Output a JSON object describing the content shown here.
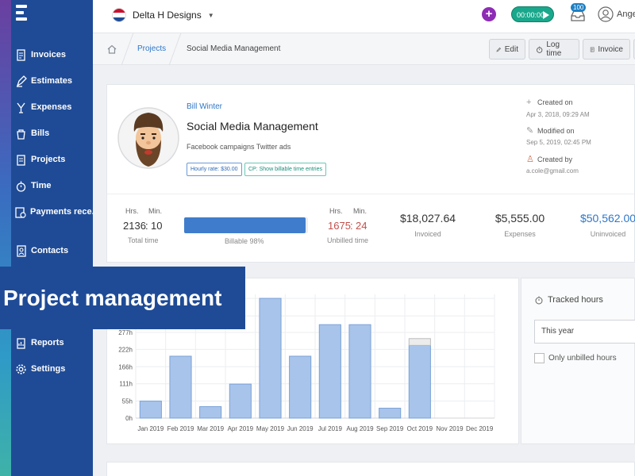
{
  "sidebar": {
    "items": [
      {
        "label": "Invoices",
        "icon": "invoice-icon"
      },
      {
        "label": "Estimates",
        "icon": "estimates-icon"
      },
      {
        "label": "Expenses",
        "icon": "expenses-icon"
      },
      {
        "label": "Bills",
        "icon": "bills-icon"
      },
      {
        "label": "Projects",
        "icon": "projects-icon"
      },
      {
        "label": "Time",
        "icon": "stopwatch-icon"
      },
      {
        "label": "Payments rece...",
        "icon": "payments-icon"
      },
      {
        "label": "Contacts",
        "icon": "contacts-icon"
      },
      {
        "label": "Reports",
        "icon": "reports-icon"
      },
      {
        "label": "Settings",
        "icon": "gear-icon"
      }
    ]
  },
  "topbar": {
    "company": "Delta H Designs",
    "timer": "00:00:00",
    "notifications": "100",
    "user": "Angeli"
  },
  "breadcrumb": {
    "parent": "Projects",
    "current": "Social Media Management"
  },
  "actions": {
    "edit": "Edit",
    "log_time": "Log time",
    "invoice": "Invoice"
  },
  "project": {
    "client": "Bill Winter",
    "title": "Social Media Management",
    "description": "Facebook campaigns Twitter ads",
    "hourly_rate": "Hourly rate: $30.00",
    "billable_tag": "CP: Show billable time entries",
    "created_label": "Created on",
    "created_value": "Apr 3, 2018, 09:29 AM",
    "modified_label": "Modified on",
    "modified_value": "Sep 5, 2019, 02:45 PM",
    "createdby_label": "Created by",
    "createdby_value": "a.cole@gmail.com"
  },
  "stats": {
    "hrs_label": "Hrs.",
    "min_label": "Min.",
    "total_hrs": "2136",
    "total_min": "10",
    "total_label": "Total time",
    "billable_label": "Billable 98%",
    "billable_fraction": 0.98,
    "unbilled_hrs": "1675",
    "unbilled_min": "24",
    "unbilled_label": "Unbilled time",
    "invoiced_value": "$18,027.64",
    "invoiced_label": "Invoiced",
    "expenses_value": "$5,555.00",
    "expenses_label": "Expenses",
    "uninvoiced_value": "$50,562.00",
    "uninvoiced_label": "Uninvoiced"
  },
  "side_panel": {
    "title": "Tracked hours",
    "period": "This year",
    "unbilled_toggle": "Only unbilled hours"
  },
  "banner": "Project management",
  "colors": {
    "sidebar": "#1f4b96",
    "accent_blue": "#2e77c9",
    "timer_green": "#1aa88c",
    "plus_purple": "#8e2cb5",
    "bar_fill": "#a9c4ea",
    "bar_stroke": "#7aa2d8"
  },
  "chart_data": {
    "type": "bar",
    "categories": [
      "Jan 2019",
      "Feb 2019",
      "Mar 2019",
      "Apr 2019",
      "May 2019",
      "Jun 2019",
      "Jul 2019",
      "Aug 2019",
      "Sep 2019",
      "Oct 2019",
      "Nov 2019",
      "Dec 2019"
    ],
    "values": [
      55,
      200,
      37,
      110,
      387,
      200,
      302,
      302,
      32,
      235,
      0,
      0
    ],
    "ticks": [
      "0h",
      "55h",
      "111h",
      "166h",
      "222h",
      "277h"
    ],
    "tick_values": [
      0,
      55,
      111,
      166,
      222,
      277
    ],
    "ylim": [
      0,
      400
    ],
    "grid": true
  }
}
